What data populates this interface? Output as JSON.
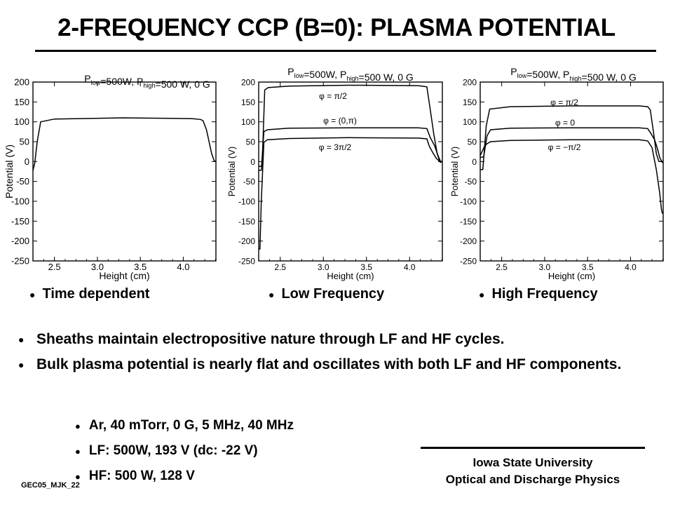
{
  "title": "2-FREQUENCY CCP (B=0):  PLASMA POTENTIAL",
  "captions": [
    "Time dependent",
    "Low Frequency",
    "High Frequency"
  ],
  "bullets": [
    "Sheaths maintain electropositive nature through LF and HF cycles.",
    "Bulk plasma potential is nearly flat and oscillates with both LF and HF components."
  ],
  "sub_bullets": [
    "Ar, 40 mTorr,  0 G, 5 MHz, 40 MHz",
    "LF: 500W, 193 V (dc: -22 V)",
    "HF: 500 W, 128 V"
  ],
  "institution": [
    "Iowa State University",
    "Optical and Discharge Physics"
  ],
  "footer_id": "GEC05_MJK_22",
  "bullet_glyph": "●",
  "chart_data": [
    {
      "type": "line",
      "title": "P_low=500W, P_high=500 W, 0 G",
      "xlabel": "Height (cm)",
      "ylabel": "Potential (V)",
      "xlim": [
        2.25,
        4.38
      ],
      "ylim": [
        -250,
        200
      ],
      "x_ticks": [
        2.5,
        3.0,
        3.5,
        4.0
      ],
      "x_tick_labels": [
        "2.5",
        "3.0",
        "3.5",
        "4.0"
      ],
      "y_ticks": [
        200,
        150,
        100,
        50,
        0,
        -50,
        -100,
        -150,
        -200,
        -250
      ],
      "y_tick_labels": [
        "200",
        "150",
        "100",
        "50",
        "0",
        "-50",
        "-100",
        "-150",
        "-200",
        "-250"
      ],
      "series": [
        {
          "name": "",
          "x": [
            2.25,
            2.27,
            2.3,
            2.34,
            2.5,
            3.3,
            4.1,
            4.2,
            4.23,
            4.27,
            4.3,
            4.33,
            4.36,
            4.38
          ],
          "y": [
            -22,
            -5,
            50,
            100,
            107,
            110,
            108,
            106,
            103,
            80,
            50,
            20,
            2,
            0
          ]
        }
      ]
    },
    {
      "type": "line",
      "title": "P_low=500W, P_high=500 W, 0 G",
      "xlabel": "Height (cm)",
      "ylabel": "Potential (V)",
      "xlim": [
        2.25,
        4.38
      ],
      "ylim": [
        -250,
        200
      ],
      "x_ticks": [
        2.5,
        3.0,
        3.5,
        4.0
      ],
      "x_tick_labels": [
        "2.5",
        "3.0",
        "3.5",
        "4.0"
      ],
      "y_ticks": [
        200,
        150,
        100,
        50,
        0,
        -50,
        -100,
        -150,
        -200,
        -250
      ],
      "y_tick_labels": [
        "200",
        "150",
        "100",
        "50",
        "0",
        "-50",
        "-100",
        "-150",
        "-200",
        "-250"
      ],
      "series": [
        {
          "name": "φ = π/2",
          "x": [
            2.25,
            2.29,
            2.32,
            2.36,
            2.6,
            3.3,
            4.1,
            4.2,
            4.24,
            4.28,
            4.32,
            4.35,
            4.38
          ],
          "y": [
            -12,
            -12,
            180,
            186,
            190,
            192,
            191,
            188,
            130,
            70,
            20,
            0,
            0
          ]
        },
        {
          "name": "φ = (0,π)",
          "x": [
            2.25,
            2.28,
            2.31,
            2.35,
            2.6,
            3.3,
            4.1,
            4.2,
            4.24,
            4.29,
            4.33,
            4.36,
            4.38
          ],
          "y": [
            -22,
            -22,
            75,
            80,
            84,
            85,
            85,
            83,
            60,
            40,
            15,
            0,
            0
          ]
        },
        {
          "name": "φ = 3π/2",
          "x": [
            2.25,
            2.265,
            2.28,
            2.31,
            2.35,
            2.6,
            3.3,
            4.1,
            4.2,
            4.23,
            4.27,
            4.31,
            4.36,
            4.38
          ],
          "y": [
            -220,
            -220,
            -100,
            48,
            55,
            58,
            60,
            59,
            57,
            38,
            22,
            8,
            -2,
            0
          ]
        }
      ]
    },
    {
      "type": "line",
      "title": "P_low=500W, P_high=500 W, 0 G",
      "xlabel": "Height (cm)",
      "ylabel": "Potential (V)",
      "xlim": [
        2.25,
        4.38
      ],
      "ylim": [
        -250,
        200
      ],
      "x_ticks": [
        2.5,
        3.0,
        3.5,
        4.0
      ],
      "x_tick_labels": [
        "2.5",
        "3.0",
        "3.5",
        "4.0"
      ],
      "y_ticks": [
        200,
        150,
        100,
        50,
        0,
        -50,
        -100,
        -150,
        -200,
        -250
      ],
      "y_tick_labels": [
        "200",
        "150",
        "100",
        "50",
        "0",
        "-50",
        "-100",
        "-150",
        "-200",
        "-250"
      ],
      "series": [
        {
          "name": "φ = π/2",
          "x": [
            2.25,
            2.28,
            2.32,
            2.36,
            2.6,
            3.3,
            4.1,
            4.2,
            4.23,
            4.27,
            4.3,
            4.33,
            4.36,
            4.38
          ],
          "y": [
            -20,
            -20,
            90,
            132,
            138,
            140,
            140,
            138,
            130,
            70,
            20,
            0,
            0,
            0
          ]
        },
        {
          "name": "φ = 0",
          "x": [
            2.25,
            2.29,
            2.33,
            2.37,
            2.6,
            3.3,
            4.1,
            4.2,
            4.24,
            4.28,
            4.31,
            4.34,
            4.37,
            4.38
          ],
          "y": [
            10,
            12,
            65,
            80,
            84,
            85,
            85,
            83,
            70,
            55,
            35,
            10,
            -2,
            0
          ]
        },
        {
          "name": "φ = −π/2",
          "x": [
            2.25,
            2.3,
            2.33,
            2.37,
            2.6,
            3.3,
            4.1,
            4.2,
            4.25,
            4.3,
            4.34,
            4.36,
            4.37,
            4.38
          ],
          "y": [
            15,
            38,
            45,
            50,
            53,
            55,
            55,
            52,
            35,
            -20,
            -80,
            -120,
            -130,
            -130
          ]
        }
      ]
    }
  ]
}
